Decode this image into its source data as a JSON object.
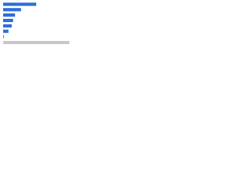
{
  "chart_data": {
    "type": "bar",
    "orientation": "horizontal",
    "categories": [
      null,
      null,
      null,
      null,
      null,
      null,
      null
    ],
    "values": [
      50,
      27,
      18,
      15,
      13,
      8,
      1
    ],
    "color": "#2f6fd6",
    "xlim": [
      0,
      100
    ]
  }
}
